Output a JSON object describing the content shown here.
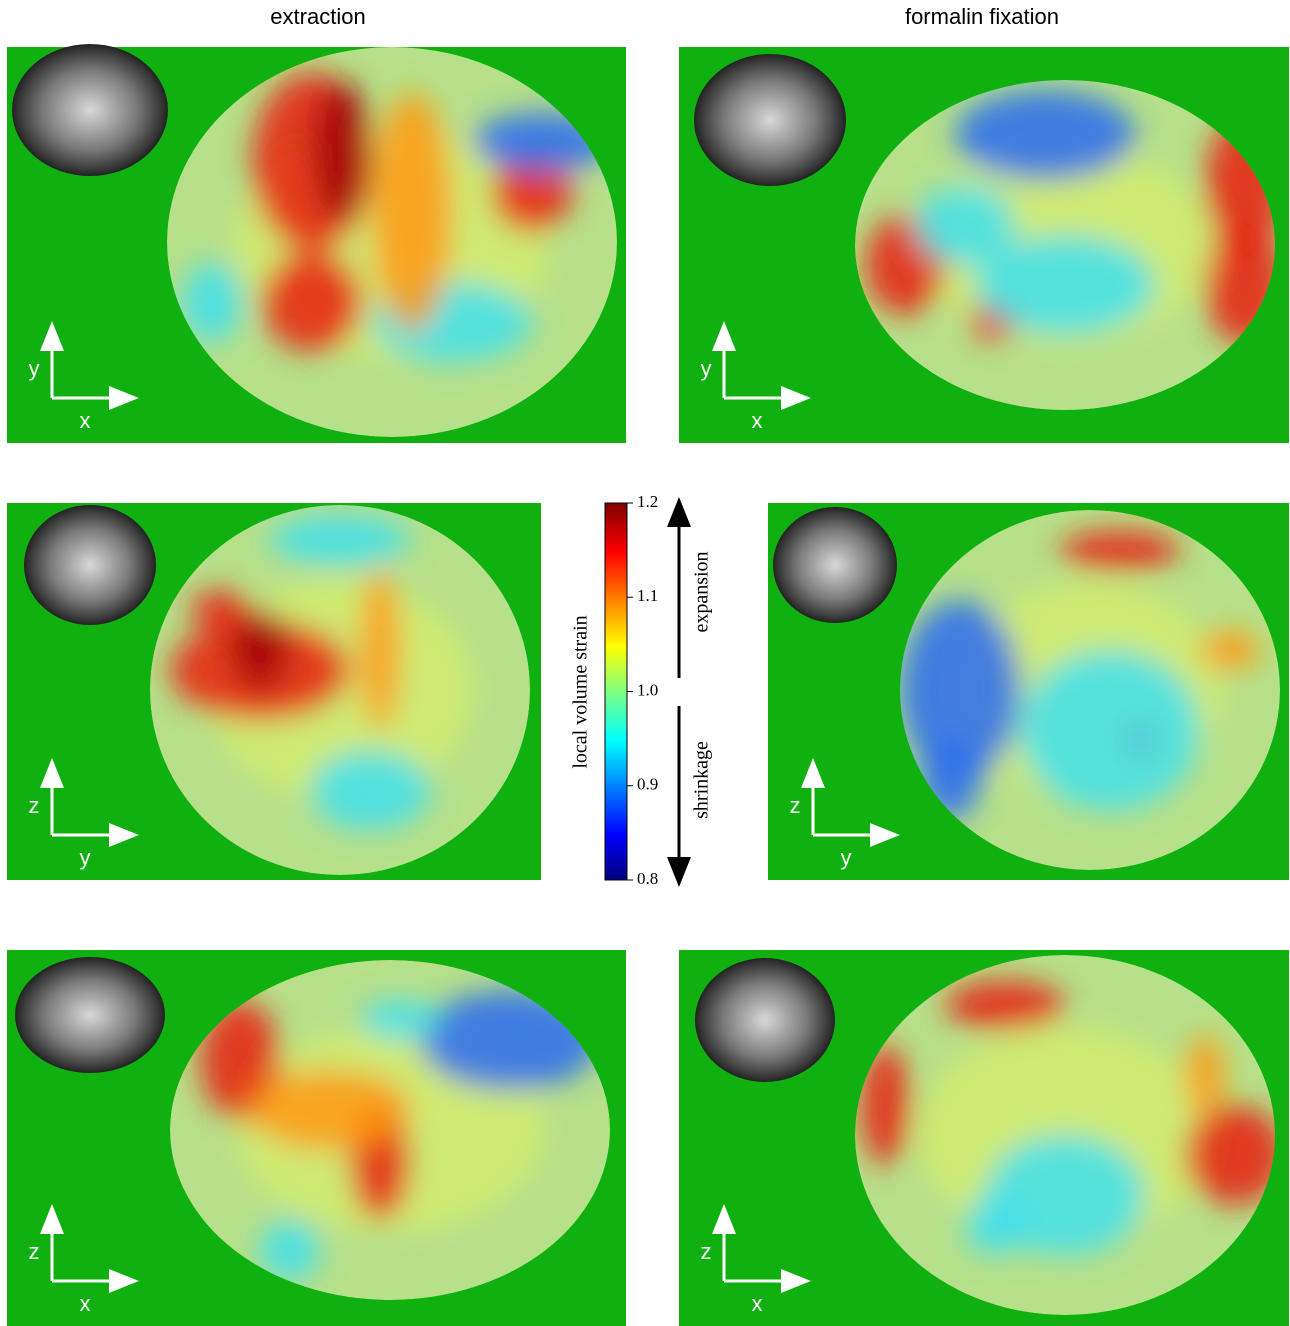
{
  "columns": [
    "extraction",
    "formalin fixation"
  ],
  "panels": [
    {
      "vertical": "y",
      "horizontal": "x"
    },
    {
      "vertical": "y",
      "horizontal": "x"
    },
    {
      "vertical": "z",
      "horizontal": "y"
    },
    {
      "vertical": "z",
      "horizontal": "y"
    },
    {
      "vertical": "z",
      "horizontal": "x"
    },
    {
      "vertical": "z",
      "horizontal": "x"
    }
  ],
  "colorbar": {
    "label": "local volume strain",
    "lim": [
      0.8,
      1.2
    ],
    "ticks": [
      0.8,
      0.9,
      {
        "value": 1,
        "label": "1.0"
      },
      1.1,
      1.2
    ],
    "upper": "expansion",
    "lower": "shrinkage"
  }
}
